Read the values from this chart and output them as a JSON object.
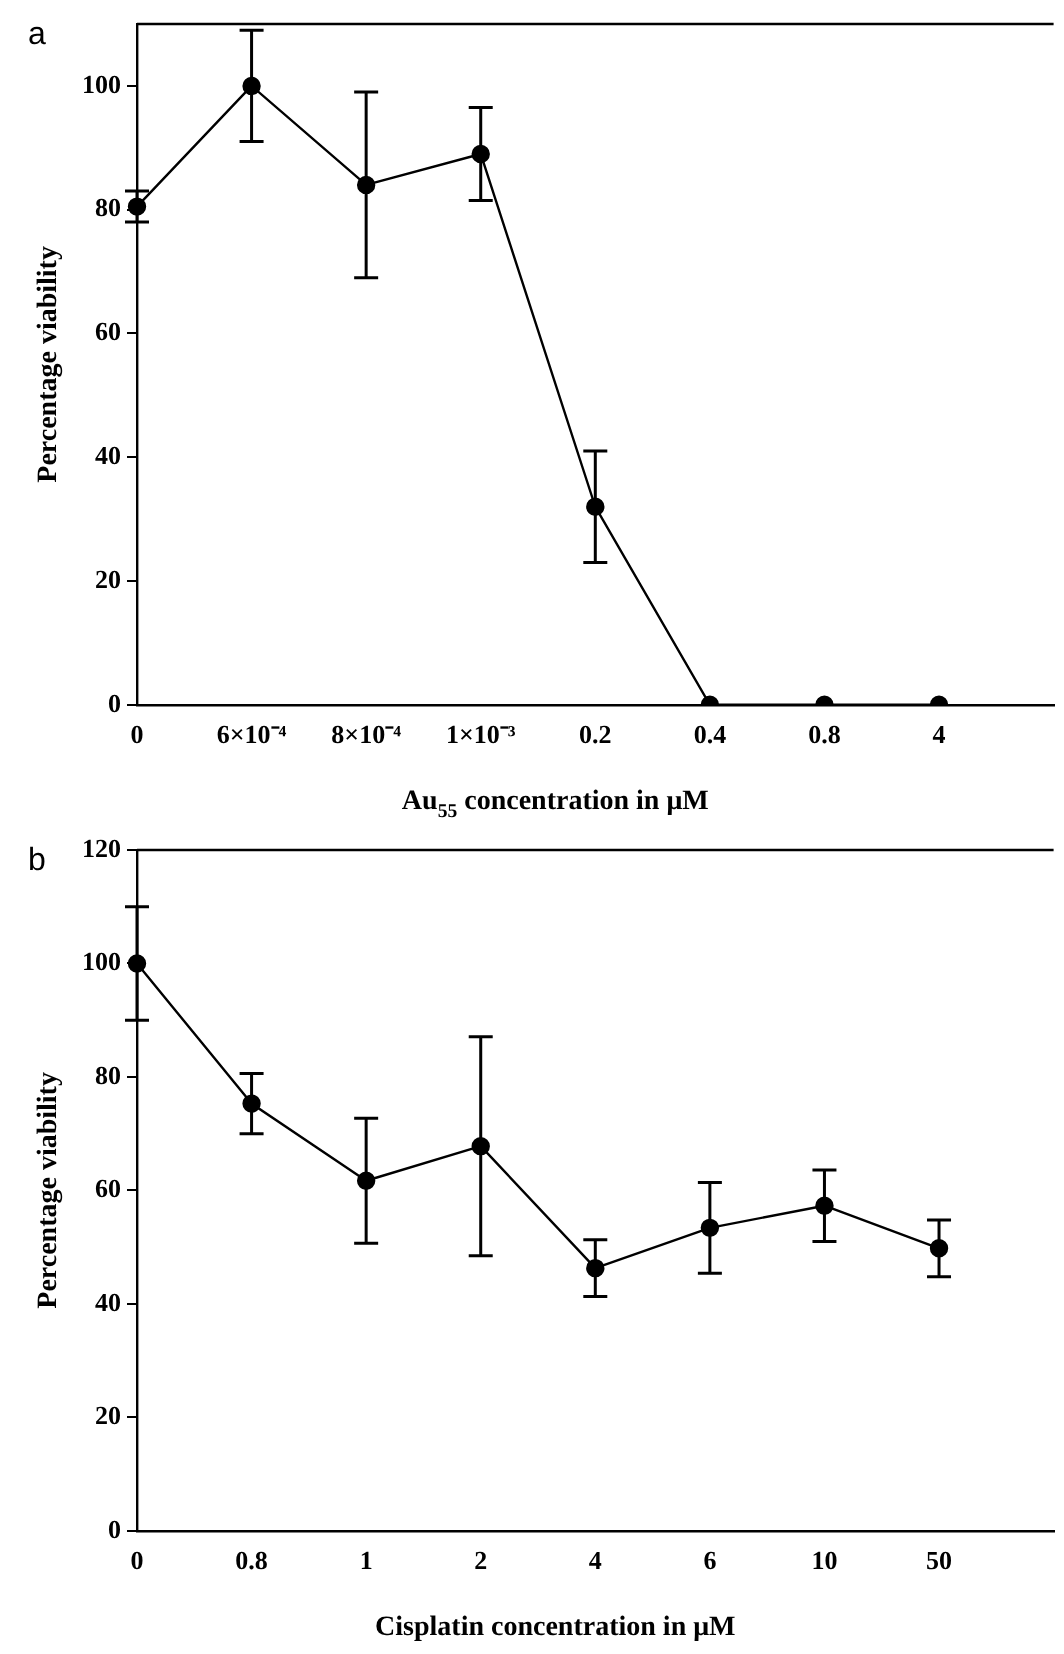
{
  "chart_data": [
    {
      "type": "line",
      "xlabel": "Au$_{55}$ concentration in μM",
      "ylabel": "Percentage viability",
      "annotations": [
        "a"
      ],
      "categories": [
        "0",
        "6×10⁻⁴",
        "8×10⁻⁴",
        "1×10⁻³",
        "0.2",
        "0.4",
        "0.8",
        "4"
      ],
      "series": [
        {
          "color": "#000000",
          "values": [
            80.5,
            100,
            84,
            89,
            32,
            0,
            0,
            0
          ],
          "errors": [
            2.5,
            9,
            15,
            7.5,
            9,
            null,
            null,
            null
          ]
        }
      ],
      "ylim": [
        0,
        110
      ],
      "yticks": [
        0,
        20,
        40,
        60,
        80,
        100
      ],
      "grid": false,
      "legend": false,
      "marker": "circle",
      "line_style": "solid"
    },
    {
      "type": "line",
      "xlabel": "Cisplatin concentration in μM",
      "ylabel": "Percentage viability",
      "annotations": [
        "b"
      ],
      "categories": [
        "0",
        "0.8",
        "1",
        "2",
        "4",
        "6",
        "10",
        "50"
      ],
      "series": [
        {
          "color": "#000000",
          "values": [
            100,
            75.3,
            61.7,
            67.8,
            46.3,
            53.4,
            57.3,
            49.8
          ],
          "errors": [
            10,
            5.3,
            11,
            19.3,
            5,
            8,
            6.3,
            5
          ]
        }
      ],
      "ylim": [
        0,
        120
      ],
      "yticks": [
        0,
        20,
        40,
        60,
        80,
        100,
        120
      ],
      "grid": false,
      "legend": false,
      "marker": "circle",
      "line_style": "solid"
    }
  ]
}
